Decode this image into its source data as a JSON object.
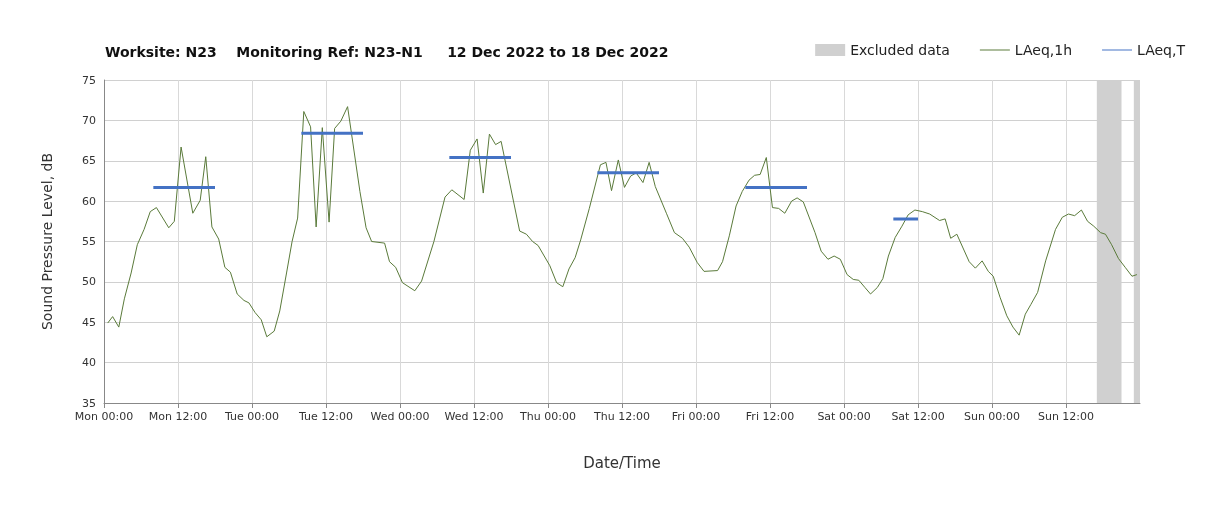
{
  "chart_data": {
    "type": "line",
    "title": "Worksite: N23    Monitoring Ref: N23-N1     12 Dec 2022 to 18 Dec 2022",
    "xlabel": "Date/Time",
    "ylabel": "Sound Pressure Level, dB",
    "xlim": [
      "2022-12-12T00:00",
      "2022-12-19T00:00"
    ],
    "xticks": [
      {
        "value": "2022-12-12T00:00",
        "label": "Mon 00:00"
      },
      {
        "value": "2022-12-12T12:00",
        "label": "Mon 12:00"
      },
      {
        "value": "2022-12-13T00:00",
        "label": "Tue 00:00"
      },
      {
        "value": "2022-12-13T12:00",
        "label": "Tue 12:00"
      },
      {
        "value": "2022-12-14T00:00",
        "label": "Wed 00:00"
      },
      {
        "value": "2022-12-14T12:00",
        "label": "Wed 12:00"
      },
      {
        "value": "2022-12-15T00:00",
        "label": "Thu 00:00"
      },
      {
        "value": "2022-12-15T12:00",
        "label": "Thu 12:00"
      },
      {
        "value": "2022-12-16T00:00",
        "label": "Fri 00:00"
      },
      {
        "value": "2022-12-16T12:00",
        "label": "Fri 12:00"
      },
      {
        "value": "2022-12-17T00:00",
        "label": "Sat 00:00"
      },
      {
        "value": "2022-12-17T12:00",
        "label": "Sat 12:00"
      },
      {
        "value": "2022-12-18T00:00",
        "label": "Sun 00:00"
      },
      {
        "value": "2022-12-18T12:00",
        "label": "Sun 12:00"
      }
    ],
    "ylim": [
      35,
      75
    ],
    "yticks": [
      35,
      40,
      45,
      50,
      55,
      60,
      65,
      70,
      75
    ],
    "grid": true,
    "legend": "top right",
    "line_style": "solid",
    "bands": [
      {
        "axis": "x",
        "from": "2022-12-18T17:00",
        "to": "2022-12-18T21:00",
        "label": "Excluded data",
        "color": "#d0d0d0"
      },
      {
        "axis": "x",
        "from": "2022-12-18T23:00",
        "to": "2022-12-19T00:00",
        "color": "#d0d0d0"
      }
    ],
    "series": [
      {
        "name": "LAeq,1h",
        "color": "#5a7a3a",
        "x": [
          "2022-12-12T00:36",
          "2022-12-12T01:24",
          "2022-12-12T02:24",
          "2022-12-12T03:18",
          "2022-12-12T04:24",
          "2022-12-12T05:24",
          "2022-12-12T06:30",
          "2022-12-12T07:30",
          "2022-12-12T08:30",
          "2022-12-12T10:30",
          "2022-12-12T11:24",
          "2022-12-12T12:30",
          "2022-12-12T14:24",
          "2022-12-12T15:36",
          "2022-12-12T16:30",
          "2022-12-12T17:30",
          "2022-12-12T18:36",
          "2022-12-12T19:36",
          "2022-12-12T20:30",
          "2022-12-12T21:36",
          "2022-12-12T22:42",
          "2022-12-12T23:30",
          "2022-12-13T00:30",
          "2022-12-13T01:30",
          "2022-12-13T02:24",
          "2022-12-13T03:36",
          "2022-12-13T04:30",
          "2022-12-13T05:36",
          "2022-12-13T06:30",
          "2022-12-13T07:24",
          "2022-12-13T08:24",
          "2022-12-13T09:30",
          "2022-12-13T10:24",
          "2022-12-13T11:24",
          "2022-12-13T12:30",
          "2022-12-13T13:24",
          "2022-12-13T14:24",
          "2022-12-13T15:30",
          "2022-12-13T17:30",
          "2022-12-13T18:30",
          "2022-12-13T19:24",
          "2022-12-13T21:30",
          "2022-12-13T22:18",
          "2022-12-13T23:18",
          "2022-12-14T00:24",
          "2022-12-14T02:24",
          "2022-12-14T03:30",
          "2022-12-14T05:30",
          "2022-12-14T07:18",
          "2022-12-14T08:24",
          "2022-12-14T10:24",
          "2022-12-14T11:24",
          "2022-12-14T12:30",
          "2022-12-14T13:30",
          "2022-12-14T14:30",
          "2022-12-14T15:30",
          "2022-12-14T16:24",
          "2022-12-14T19:24",
          "2022-12-14T20:30",
          "2022-12-14T21:30",
          "2022-12-14T22:24",
          "2022-12-15T00:18",
          "2022-12-15T01:24",
          "2022-12-15T02:24",
          "2022-12-15T03:24",
          "2022-12-15T04:24",
          "2022-12-15T05:18",
          "2022-12-15T06:42",
          "2022-12-15T08:30",
          "2022-12-15T09:24",
          "2022-12-15T10:18",
          "2022-12-15T11:24",
          "2022-12-15T12:24",
          "2022-12-15T13:24",
          "2022-12-15T14:18",
          "2022-12-15T15:24",
          "2022-12-15T16:24",
          "2022-12-15T17:24",
          "2022-12-15T19:12",
          "2022-12-15T20:30",
          "2022-12-15T21:48",
          "2022-12-15T22:54",
          "2022-12-16T00:12",
          "2022-12-16T01:18",
          "2022-12-16T03:30",
          "2022-12-16T04:18",
          "2022-12-16T05:24",
          "2022-12-16T06:30",
          "2022-12-16T07:30",
          "2022-12-16T08:36",
          "2022-12-16T09:30",
          "2022-12-16T10:24",
          "2022-12-16T11:24",
          "2022-12-16T12:24",
          "2022-12-16T13:24",
          "2022-12-16T14:24",
          "2022-12-16T15:30",
          "2022-12-16T16:24",
          "2022-12-16T17:24",
          "2022-12-16T19:18",
          "2022-12-16T20:18",
          "2022-12-16T21:24",
          "2022-12-16T22:24",
          "2022-12-16T23:24",
          "2022-12-17T00:30",
          "2022-12-17T01:30",
          "2022-12-17T02:24",
          "2022-12-17T03:24",
          "2022-12-17T04:18",
          "2022-12-17T05:24",
          "2022-12-17T06:18",
          "2022-12-17T07:12",
          "2022-12-17T08:18",
          "2022-12-17T09:24",
          "2022-12-17T10:24",
          "2022-12-17T11:30",
          "2022-12-17T12:42",
          "2022-12-17T13:54",
          "2022-12-17T15:30",
          "2022-12-17T16:24",
          "2022-12-17T17:18",
          "2022-12-17T18:18",
          "2022-12-17T20:18",
          "2022-12-17T21:18",
          "2022-12-17T22:24",
          "2022-12-17T23:24",
          "2022-12-18T00:12",
          "2022-12-18T01:18",
          "2022-12-18T02:24",
          "2022-12-18T03:24",
          "2022-12-18T04:24",
          "2022-12-18T05:24",
          "2022-12-18T06:18",
          "2022-12-18T07:24",
          "2022-12-18T08:42",
          "2022-12-18T10:18",
          "2022-12-18T11:24",
          "2022-12-18T12:24",
          "2022-12-18T13:24",
          "2022-12-18T14:30",
          "2022-12-18T15:30",
          "2022-12-18T16:30",
          "2022-12-18T17:36",
          "2022-12-18T18:24",
          "2022-12-18T19:24",
          "2022-12-18T20:30",
          "2022-12-18T21:36",
          "2022-12-18T22:42",
          "2022-12-18T23:30"
        ],
        "values": [
          44.9,
          45.7,
          44.4,
          47.9,
          51.1,
          54.6,
          56.5,
          58.7,
          59.2,
          56.7,
          57.5,
          66.7,
          58.5,
          60.1,
          65.5,
          56.8,
          55.3,
          51.8,
          51.2,
          48.5,
          47.7,
          47.4,
          46.2,
          45.3,
          43.2,
          43.9,
          46.4,
          51.1,
          55.0,
          57.9,
          71.1,
          69.2,
          56.8,
          69.1,
          57.4,
          69.0,
          69.9,
          71.7,
          61.2,
          56.7,
          55.0,
          54.8,
          52.5,
          51.8,
          49.9,
          48.9,
          50.1,
          55.0,
          60.5,
          61.4,
          60.2,
          66.3,
          67.7,
          61.0,
          68.3,
          67.0,
          67.4,
          56.3,
          55.9,
          55.0,
          54.5,
          52.0,
          49.9,
          49.4,
          51.6,
          53.0,
          55.2,
          59.1,
          64.5,
          64.8,
          61.3,
          65.1,
          61.7,
          63.1,
          63.5,
          62.3,
          64.8,
          61.8,
          58.5,
          56.1,
          55.4,
          54.3,
          52.4,
          51.3,
          51.4,
          52.5,
          55.7,
          59.4,
          61.2,
          62.6,
          63.2,
          63.3,
          65.4,
          59.2,
          59.1,
          58.5,
          60.0,
          60.4,
          59.9,
          56.1,
          53.8,
          52.8,
          53.2,
          52.8,
          50.9,
          50.3,
          50.2,
          49.3,
          48.5,
          49.3,
          50.4,
          53.2,
          55.5,
          56.9,
          58.3,
          58.9,
          58.7,
          58.4,
          57.6,
          57.8,
          55.4,
          55.9,
          52.5,
          51.7,
          52.6,
          51.3,
          50.7,
          48.1,
          45.8,
          44.4,
          43.4,
          46.0,
          47.2,
          48.7,
          52.6,
          56.5,
          58.0,
          58.4,
          58.2,
          58.9,
          57.5,
          56.9,
          56.1,
          55.9,
          54.6,
          52.9,
          51.8,
          50.7,
          50.9
        ]
      },
      {
        "name": "LAeq,T",
        "color": "#4472c4",
        "x": [
          "2022-12-12T08:00",
          "2022-12-12T18:00",
          "2022-12-13T01:00",
          "2022-12-13T08:00",
          "2022-12-13T18:00",
          "2022-12-14T01:00",
          "2022-12-14T08:00",
          "2022-12-14T18:00",
          "2022-12-15T01:00",
          "2022-12-15T08:00",
          "2022-12-15T18:00",
          "2022-12-16T01:00",
          "2022-12-16T08:00",
          "2022-12-16T18:00",
          "2022-12-17T01:00",
          "2022-12-17T08:00",
          "2022-12-17T12:00"
        ],
        "values": [
          61.7,
          61.7,
          null,
          68.4,
          68.4,
          null,
          65.4,
          65.4,
          null,
          63.5,
          63.5,
          null,
          61.7,
          61.7,
          null,
          57.8,
          57.8
        ]
      }
    ]
  }
}
